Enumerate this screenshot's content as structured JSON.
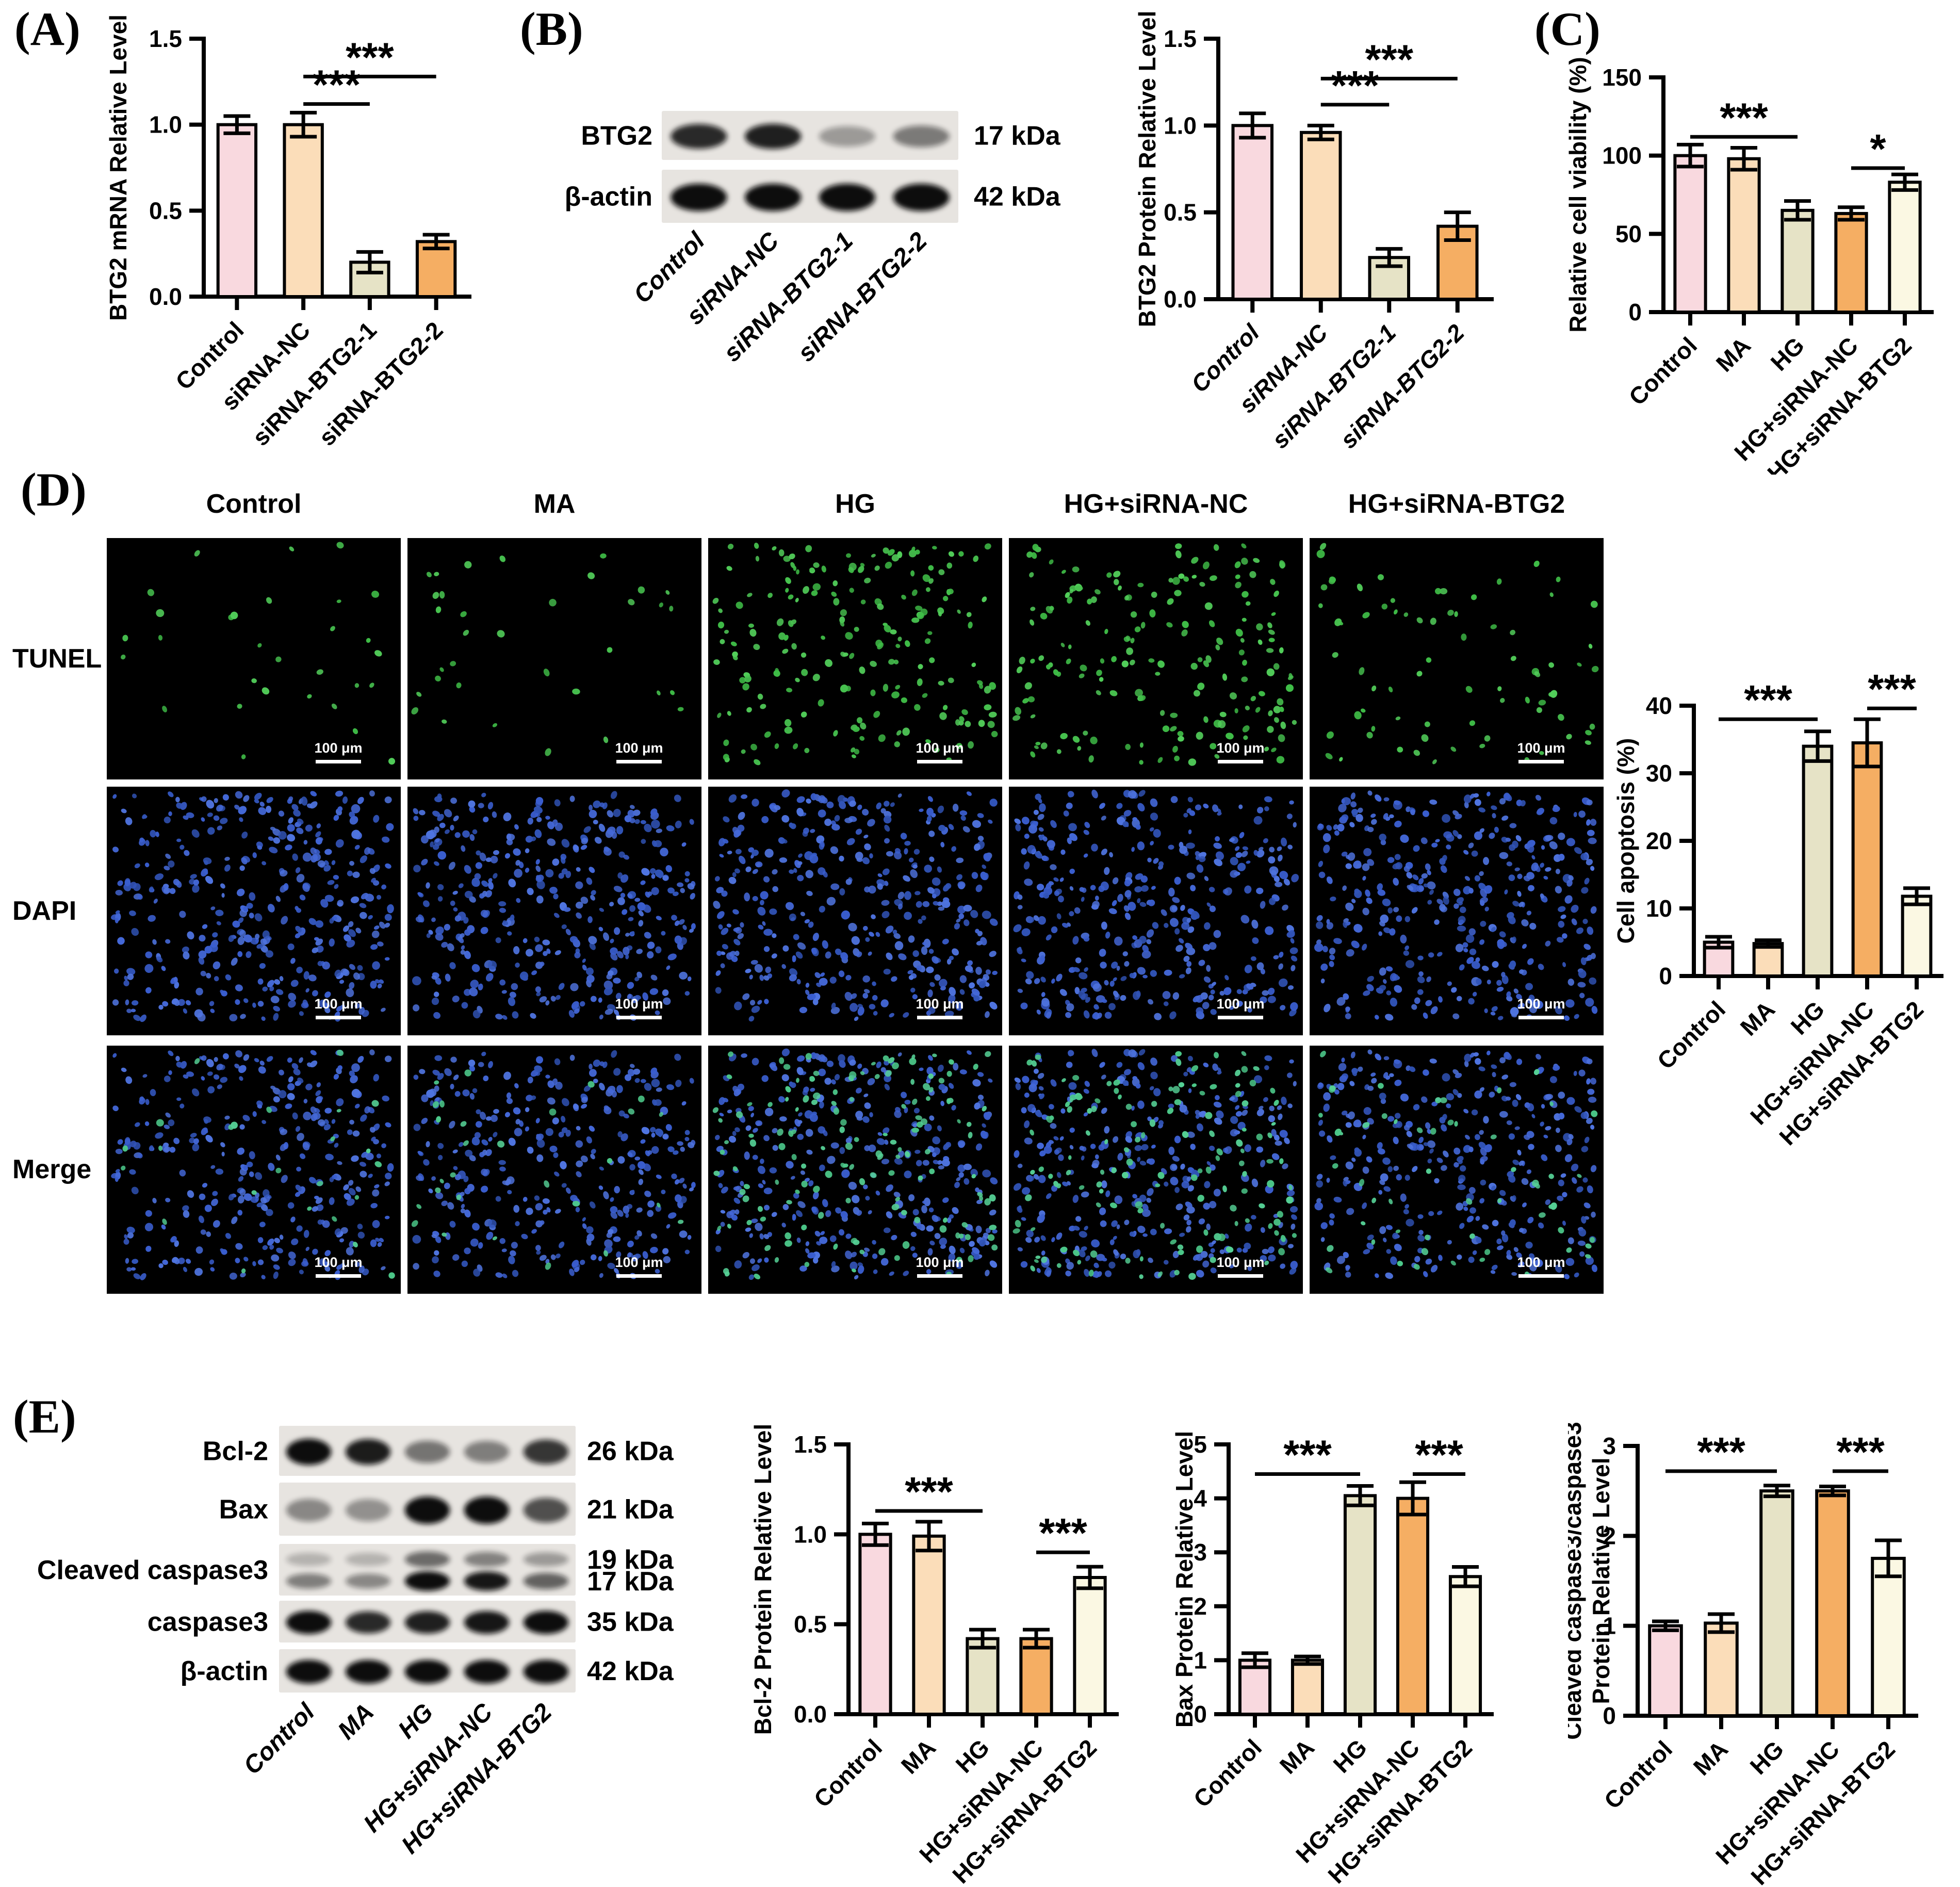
{
  "figure": {
    "panel_labels": {
      "A": "(A)",
      "B": "(B)",
      "C": "(C)",
      "D": "(D)",
      "E": "(E)"
    }
  },
  "palette": {
    "pink": "#F9D9DF",
    "peach": "#FBDDB9",
    "olive": "#E6E3C6",
    "orange": "#F5AE63",
    "ivory": "#FBF8E3",
    "axis_black": "#000000",
    "tunel_green": "#46C24E",
    "dapi_blue": "#3B5FCE",
    "merge_green": "#55D095",
    "blot_bg": "#E7E4E0",
    "band_dark": "#101010"
  },
  "groups_knockdown": [
    "Control",
    "siRNA-NC",
    "siRNA-BTG2-1",
    "siRNA-BTG2-2"
  ],
  "groups_treatment": [
    "Control",
    "MA",
    "HG",
    "HG+siRNA-NC",
    "HG+siRNA-BTG2"
  ],
  "chart_data": [
    {
      "id": "A",
      "panel": "A",
      "type": "bar",
      "ylabel": "BTG2 mRNA Relative Level",
      "categories": [
        "Control",
        "siRNA-NC",
        "siRNA-BTG2-1",
        "siRNA-BTG2-2"
      ],
      "values": [
        1.0,
        1.0,
        0.2,
        0.32
      ],
      "errors": [
        0.05,
        0.07,
        0.06,
        0.04
      ],
      "ylim": [
        0,
        1.5
      ],
      "yticks": [
        0,
        0.5,
        1.0,
        1.5
      ],
      "ytick_labels": [
        "0.0",
        "0.5",
        "1.0",
        "1.5"
      ],
      "colors": [
        "pink",
        "peach",
        "olive",
        "orange"
      ],
      "italic_categories": false,
      "grid": false,
      "significance": [
        {
          "from": 1,
          "to": 2,
          "y": 1.12,
          "label": "***"
        },
        {
          "from": 1,
          "to": 3,
          "y": 1.28,
          "label": "***"
        }
      ]
    },
    {
      "id": "B",
      "panel": "B",
      "type": "bar",
      "ylabel": "BTG2 Protein Relative Level",
      "categories": [
        "Control",
        "siRNA-NC",
        "siRNA-BTG2-1",
        "siRNA-BTG2-2"
      ],
      "values": [
        1.0,
        0.96,
        0.24,
        0.42
      ],
      "errors": [
        0.07,
        0.04,
        0.05,
        0.08
      ],
      "ylim": [
        0,
        1.5
      ],
      "yticks": [
        0,
        0.5,
        1.0,
        1.5
      ],
      "ytick_labels": [
        "0.0",
        "0.5",
        "1.0",
        "1.5"
      ],
      "colors": [
        "pink",
        "peach",
        "olive",
        "orange"
      ],
      "italic_categories": true,
      "grid": false,
      "significance": [
        {
          "from": 1,
          "to": 2,
          "y": 1.12,
          "label": "***"
        },
        {
          "from": 1,
          "to": 3,
          "y": 1.27,
          "label": "***"
        }
      ]
    },
    {
      "id": "C",
      "panel": "C",
      "type": "bar",
      "ylabel": "Relative cell viability (%)",
      "categories": [
        "Control",
        "MA",
        "HG",
        "HG+siRNA-NC",
        "HG+siRNA-BTG2"
      ],
      "values": [
        100,
        98,
        65,
        63,
        83
      ],
      "errors": [
        7,
        7,
        6,
        4,
        5
      ],
      "ylim": [
        0,
        150
      ],
      "yticks": [
        0,
        50,
        100,
        150
      ],
      "ytick_labels": [
        "0",
        "50",
        "100",
        "150"
      ],
      "colors": [
        "pink",
        "peach",
        "olive",
        "orange",
        "ivory"
      ],
      "italic_categories": false,
      "grid": false,
      "significance": [
        {
          "from": 0,
          "to": 2,
          "y": 112,
          "label": "***"
        },
        {
          "from": 3,
          "to": 4,
          "y": 92,
          "label": "*"
        }
      ]
    },
    {
      "id": "D",
      "panel": "D",
      "type": "bar",
      "ylabel": "Cell apoptosis (%)",
      "categories": [
        "Control",
        "MA",
        "HG",
        "HG+siRNA-NC",
        "HG+siRNA-BTG2"
      ],
      "values": [
        5,
        4.8,
        34,
        34.5,
        11.8
      ],
      "errors": [
        0.8,
        0.5,
        2.2,
        3.5,
        1.2
      ],
      "ylim": [
        0,
        40
      ],
      "yticks": [
        0,
        10,
        20,
        30,
        40
      ],
      "ytick_labels": [
        "0",
        "10",
        "20",
        "30",
        "40"
      ],
      "colors": [
        "pink",
        "peach",
        "olive",
        "orange",
        "ivory"
      ],
      "italic_categories": false,
      "grid": false,
      "significance": [
        {
          "from": 0,
          "to": 2,
          "y": 38,
          "label": "***"
        },
        {
          "from": 3,
          "to": 4,
          "y": 39.6,
          "label": "***"
        }
      ]
    },
    {
      "id": "E1",
      "panel": "E",
      "type": "bar",
      "ylabel": "Bcl-2 Protein Relative Level",
      "categories": [
        "Control",
        "MA",
        "HG",
        "HG+siRNA-NC",
        "HG+siRNA-BTG2"
      ],
      "values": [
        1.0,
        0.99,
        0.42,
        0.42,
        0.76
      ],
      "errors": [
        0.06,
        0.08,
        0.05,
        0.05,
        0.06
      ],
      "ylim": [
        0,
        1.5
      ],
      "yticks": [
        0,
        0.5,
        1.0,
        1.5
      ],
      "ytick_labels": [
        "0.0",
        "0.5",
        "1.0",
        "1.5"
      ],
      "colors": [
        "pink",
        "peach",
        "olive",
        "orange",
        "ivory"
      ],
      "italic_categories": false,
      "grid": false,
      "significance": [
        {
          "from": 0,
          "to": 2,
          "y": 1.13,
          "label": "***"
        },
        {
          "from": 3,
          "to": 4,
          "y": 0.9,
          "label": "***"
        }
      ]
    },
    {
      "id": "E2",
      "panel": "E",
      "type": "bar",
      "ylabel": "Bax Protein Relative Level",
      "categories": [
        "Control",
        "MA",
        "HG",
        "HG+siRNA-NC",
        "HG+siRNA-BTG2"
      ],
      "values": [
        1.0,
        1.0,
        4.05,
        4.0,
        2.55
      ],
      "errors": [
        0.13,
        0.07,
        0.18,
        0.3,
        0.18
      ],
      "ylim": [
        0,
        5
      ],
      "yticks": [
        0,
        1,
        2,
        3,
        4,
        5
      ],
      "ytick_labels": [
        "0",
        "1",
        "2",
        "3",
        "4",
        "5"
      ],
      "colors": [
        "pink",
        "peach",
        "olive",
        "orange",
        "ivory"
      ],
      "italic_categories": false,
      "grid": false,
      "significance": [
        {
          "from": 0,
          "to": 2,
          "y": 4.45,
          "label": "***"
        },
        {
          "from": 3,
          "to": 4,
          "y": 4.45,
          "label": "***"
        }
      ]
    },
    {
      "id": "E3",
      "panel": "E",
      "type": "bar",
      "ylabel": [
        "Cleaved caspase3/caspase3",
        "Protein Relative Level"
      ],
      "categories": [
        "Control",
        "MA",
        "HG",
        "HG+siRNA-NC",
        "HG+siRNA-BTG2"
      ],
      "values": [
        1.0,
        1.03,
        2.5,
        2.5,
        1.75
      ],
      "errors": [
        0.05,
        0.1,
        0.06,
        0.05,
        0.2
      ],
      "ylim": [
        0,
        3
      ],
      "yticks": [
        0,
        1,
        2,
        3
      ],
      "ytick_labels": [
        "0",
        "1",
        "2",
        "3"
      ],
      "colors": [
        "pink",
        "peach",
        "olive",
        "orange",
        "ivory"
      ],
      "italic_categories": false,
      "grid": false,
      "significance": [
        {
          "from": 0,
          "to": 2,
          "y": 2.72,
          "label": "***"
        },
        {
          "from": 3,
          "to": 4,
          "y": 2.72,
          "label": "***"
        }
      ]
    }
  ],
  "blots": {
    "B": {
      "panel": "B",
      "lanes": [
        "Control",
        "siRNA-NC",
        "siRNA-BTG2-1",
        "siRNA-BTG2-2"
      ],
      "italic_lanes": true,
      "rows": [
        {
          "protein": "BTG2",
          "kda": [
            "17 kDa"
          ],
          "bands": [
            [
              0.85,
              0.9,
              0.25,
              0.42
            ]
          ]
        },
        {
          "protein": "β-actin",
          "kda": [
            "42 kDa"
          ],
          "bands": [
            [
              1,
              1,
              1,
              1
            ]
          ]
        }
      ]
    },
    "E": {
      "panel": "E",
      "lanes": [
        "Control",
        "MA",
        "HG",
        "HG+siRNA-NC",
        "HG+siRNA-BTG2"
      ],
      "italic_lanes": true,
      "rows": [
        {
          "protein": "Bcl-2",
          "kda": [
            "26 kDa"
          ],
          "bands": [
            [
              1,
              0.92,
              0.45,
              0.4,
              0.78
            ]
          ]
        },
        {
          "protein": "Bax",
          "kda": [
            "21 kDa"
          ],
          "bands": [
            [
              0.35,
              0.3,
              1,
              1,
              0.65
            ]
          ]
        },
        {
          "protein": "Cleaved caspase3",
          "kda": [
            "19 kDa",
            "17 kDa"
          ],
          "bands": [
            [
              0.12,
              0.12,
              0.5,
              0.38,
              0.25
            ],
            [
              0.4,
              0.35,
              1,
              0.95,
              0.55
            ]
          ]
        },
        {
          "protein": "caspase3",
          "kda": [
            "35 kDa"
          ],
          "bands": [
            [
              1,
              0.85,
              0.9,
              0.95,
              1
            ]
          ]
        },
        {
          "protein": "β-actin",
          "kda": [
            "42 kDa"
          ],
          "bands": [
            [
              1,
              1,
              1,
              1,
              1
            ]
          ]
        }
      ]
    }
  },
  "microscopy": {
    "row_labels": [
      "TUNEL",
      "DAPI",
      "Merge"
    ],
    "col_labels": [
      "Control",
      "MA",
      "HG",
      "HG+siRNA-NC",
      "HG+siRNA-BTG2"
    ],
    "scale_bar_label": "100 μm",
    "tunel_green_counts": [
      30,
      34,
      200,
      185,
      75
    ],
    "merge_green_counts": [
      24,
      28,
      145,
      138,
      55
    ],
    "dapi_nuclei_count": 380,
    "merge_nuclei_count": 340
  }
}
